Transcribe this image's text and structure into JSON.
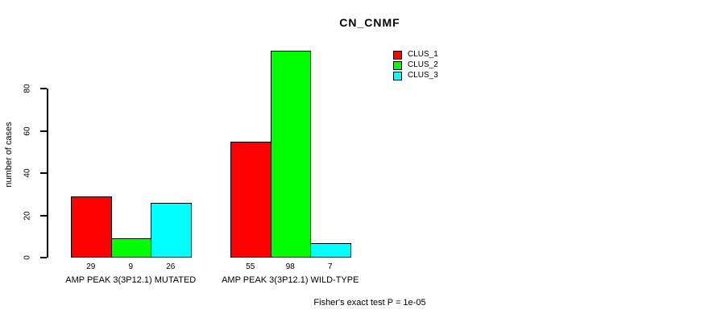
{
  "title": "CN_CNMF",
  "ylabel": "number of cases",
  "footer": "Fisher's exact test P = 1e-05",
  "legend": {
    "position": "top-right",
    "items": [
      {
        "label": "CLUS_1",
        "color": "#FF0000"
      },
      {
        "label": "CLUS_2",
        "color": "#00FF00"
      },
      {
        "label": "CLUS_3",
        "color": "#00FFFF"
      }
    ]
  },
  "chart_data": {
    "type": "bar",
    "title": "CN_CNMF",
    "xlabel": "",
    "ylabel": "number of cases",
    "categories": [
      "AMP PEAK 3(3P12.1) MUTATED",
      "AMP PEAK 3(3P12.1) WILD-TYPE"
    ],
    "series": [
      {
        "name": "CLUS_1",
        "color": "#FF0000",
        "values": [
          29,
          55
        ]
      },
      {
        "name": "CLUS_2",
        "color": "#00FF00",
        "values": [
          9,
          98
        ]
      },
      {
        "name": "CLUS_3",
        "color": "#00FFFF",
        "values": [
          26,
          7
        ]
      }
    ],
    "bar_value_labels": [
      [
        "29",
        "9",
        "26"
      ],
      [
        "55",
        "98",
        "7"
      ]
    ],
    "yticks": [
      0,
      20,
      40,
      60,
      80
    ],
    "ylim": [
      0,
      100
    ],
    "grid": false,
    "legend_position": "top-right",
    "annotation": "Fisher's exact test P = 1e-05"
  }
}
